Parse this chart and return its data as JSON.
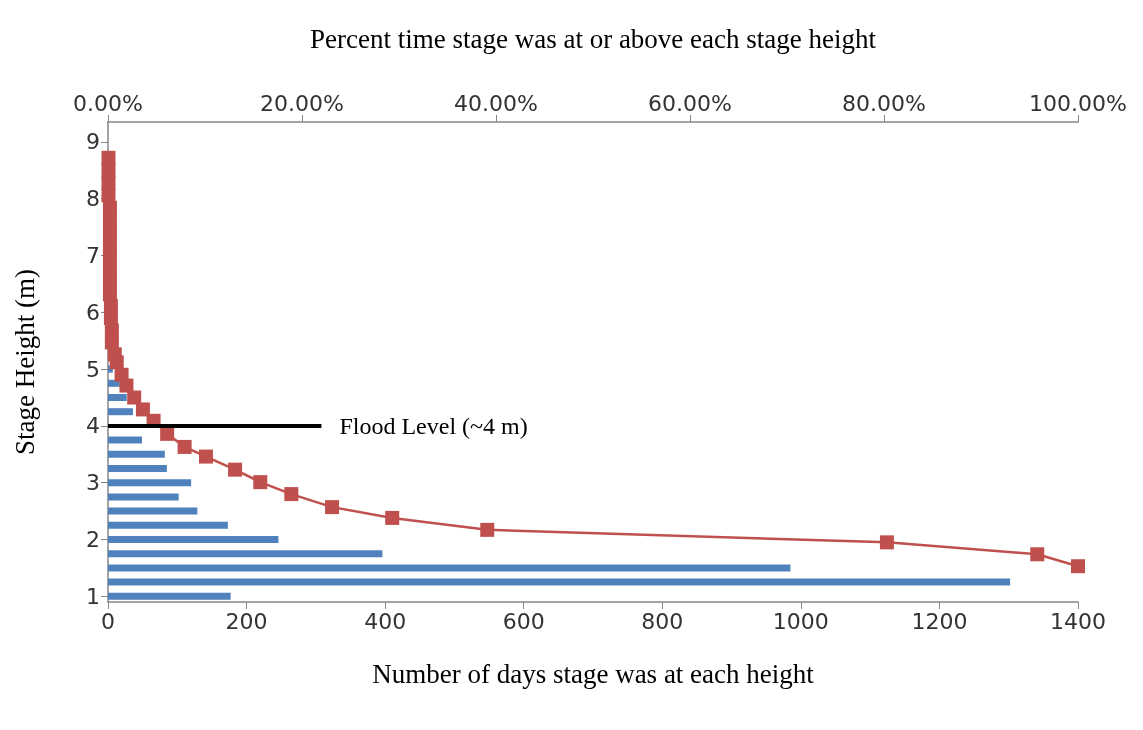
{
  "chart_data": {
    "type": "bar",
    "orientation": "horizontal",
    "xlabel": "Number of days stage was at each height",
    "x2label": "Percent time stage was at or above each stage height",
    "ylabel": "Stage Height (m)",
    "xlim": [
      0,
      1400
    ],
    "xticks": [
      0,
      200,
      400,
      600,
      800,
      1000,
      1200,
      1400
    ],
    "x2lim": [
      0,
      100
    ],
    "x2ticks": [
      {
        "value": 0,
        "label": "0.00%"
      },
      {
        "value": 20,
        "label": "20.00%"
      },
      {
        "value": 40,
        "label": "40.00%"
      },
      {
        "value": 60,
        "label": "60.00%"
      },
      {
        "value": 80,
        "label": "80.00%"
      },
      {
        "value": 100,
        "label": "100.00%"
      }
    ],
    "ylim": [
      0.9,
      9.35
    ],
    "yticks": [
      1,
      2,
      3,
      4,
      5,
      6,
      7,
      8,
      9
    ],
    "grid": false,
    "marker": "square",
    "series": [
      {
        "color": "#4f81bd",
        "x": [
          1,
          1.25,
          1.5,
          1.75,
          2,
          2.25,
          2.5,
          2.75,
          3,
          3.25,
          3.5,
          3.75,
          4,
          4.25,
          4.5,
          4.75,
          5
        ],
        "values": [
          177,
          1302,
          985,
          396,
          246,
          173,
          129,
          102,
          120,
          85,
          82,
          49,
          null,
          36,
          27,
          17,
          7
        ]
      },
      {
        "type": "line",
        "axis": "x2",
        "color": "#c0504d",
        "values": [
          0.05,
          0.05,
          0.05,
          0.05,
          0.2,
          0.2,
          0.2,
          0.2,
          0.2,
          0.2,
          0.2,
          0.2,
          0.3,
          0.3,
          0.4,
          0.4,
          0.7,
          0.9,
          1.4,
          1.9,
          2.7,
          3.6,
          4.7,
          6.1,
          7.9,
          10.1,
          13.1,
          15.7,
          18.9,
          23.1,
          29.3,
          39.1,
          80.3,
          95.8,
          100
        ],
        "x": [
          8.72,
          8.5,
          8.28,
          8.06,
          7.84,
          7.62,
          7.4,
          7.18,
          6.96,
          6.74,
          6.53,
          6.32,
          6.11,
          5.9,
          5.68,
          5.47,
          5.26,
          5.12,
          4.9,
          4.71,
          4.5,
          4.29,
          4.09,
          3.86,
          3.63,
          3.46,
          3.23,
          3.01,
          2.8,
          2.57,
          2.38,
          2.17,
          1.95,
          1.74,
          1.53
        ]
      }
    ],
    "ref_lines": [
      {
        "axis": "y",
        "value": 4,
        "label": "Flood Level (~4 m)",
        "color": "#000000"
      }
    ]
  }
}
